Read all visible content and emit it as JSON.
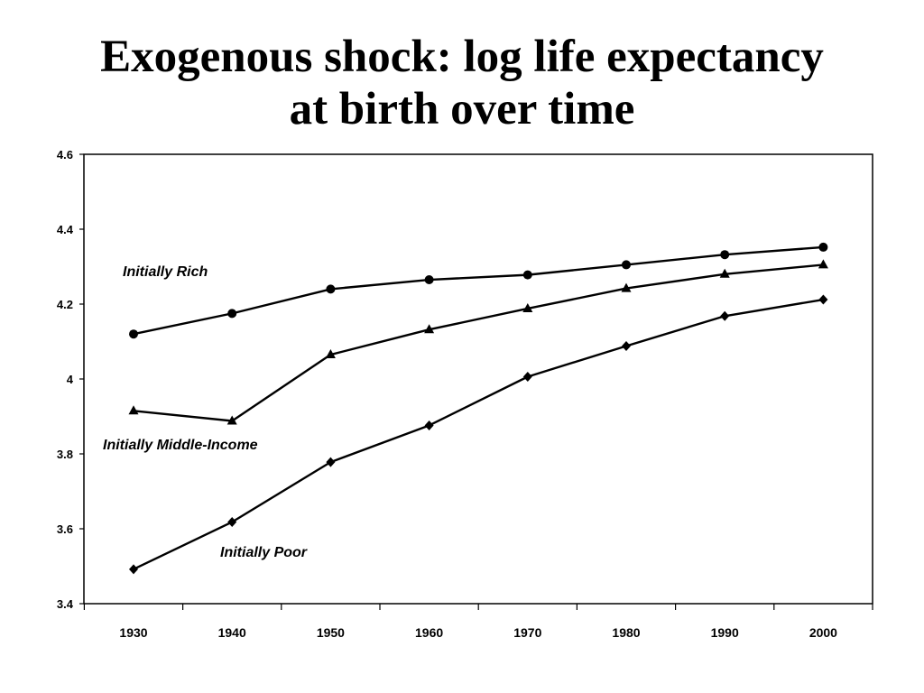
{
  "slide": {
    "title_line1": "Exogenous shock: log life expectancy",
    "title_line2": "at birth over time"
  },
  "chart_data": {
    "type": "line",
    "x": [
      1930,
      1940,
      1950,
      1960,
      1970,
      1980,
      1990,
      2000
    ],
    "xlabels": [
      "1930",
      "1940",
      "1950",
      "1960",
      "1970",
      "1980",
      "1990",
      "2000"
    ],
    "ylim": [
      3.4,
      4.6
    ],
    "yticks": [
      3.4,
      3.6,
      3.8,
      4,
      4.2,
      4.4,
      4.6
    ],
    "yticklabels": [
      "3.4",
      "3.6",
      "3.8",
      "4",
      "4.2",
      "4.4",
      "4.6"
    ],
    "grid": false,
    "legend": "none",
    "series": [
      {
        "name": "Initially Rich",
        "marker": "circle",
        "values": [
          4.12,
          4.175,
          4.24,
          4.265,
          4.278,
          4.305,
          4.332,
          4.352
        ]
      },
      {
        "name": "Initially Middle-Income",
        "marker": "triangle",
        "values": [
          3.915,
          3.888,
          4.065,
          4.132,
          4.188,
          4.242,
          4.28,
          4.305
        ]
      },
      {
        "name": "Initially Poor",
        "marker": "diamond",
        "values": [
          3.492,
          3.618,
          3.778,
          3.876,
          4.006,
          4.088,
          4.168,
          4.212
        ]
      }
    ],
    "colors": {
      "line": "#000000",
      "background": "#ffffff"
    }
  }
}
